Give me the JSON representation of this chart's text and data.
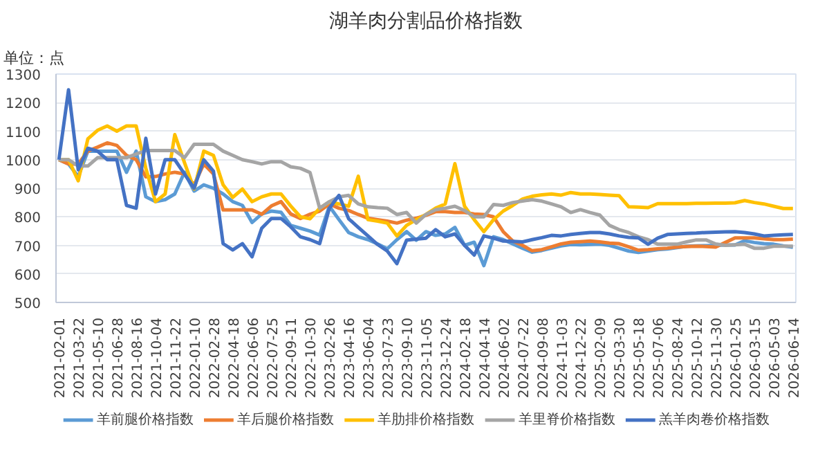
{
  "chart_data": {
    "type": "line",
    "title": "湖羊肉分割品价格指数",
    "annotations": [
      "单位：点"
    ],
    "categories": [
      "2021-02-01",
      null,
      "2021-03-22",
      null,
      "2021-05-10",
      null,
      "2021-06-28",
      null,
      "2021-08-16",
      null,
      "2021-10-04",
      null,
      "2021-11-22",
      null,
      "2022-01-10",
      null,
      "2022-02-28",
      null,
      "2022-04-18",
      null,
      "2022-06-06",
      null,
      "2022-07-25",
      null,
      "2022-09-11",
      null,
      "2022-10-30",
      null,
      "2023-02-26",
      null,
      "2023-04-16",
      null,
      "2023-06-04",
      null,
      "2023-07-23",
      null,
      "2023-09-10",
      null,
      "2023-11-05",
      null,
      "2023-12-24",
      null,
      "2024-02-18",
      null,
      "2024-04-14",
      null,
      "2024-06-02",
      null,
      "2024-07-22",
      null,
      "2024-09-08",
      null,
      "2024-11-03",
      null,
      "2024-12-22",
      null,
      "2025-02-09",
      null,
      "2025-03-30",
      null,
      "2025-05-18",
      null,
      "2025-07-06",
      null,
      "2025-08-24",
      null,
      "2025-10-12",
      null,
      "2025-11-30",
      null,
      "2026-01-25",
      null,
      "2026-03-15",
      null,
      "2026-05-03",
      null,
      "2026-06-14"
    ],
    "series": [
      {
        "name": "羊前腿价格指数",
        "color": "#5b9bd5",
        "values": [
          1000,
          985,
          941,
          1030,
          1030,
          1030,
          1030,
          956,
          1030,
          870,
          853,
          860,
          880,
          956,
          890,
          912,
          900,
          880,
          853,
          840,
          780,
          810,
          820,
          816,
          770,
          760,
          750,
          736,
          837,
          790,
          745,
          730,
          720,
          705,
          688,
          720,
          748,
          718,
          748,
          735,
          740,
          763,
          700,
          711,
          629,
          730,
          720,
          705,
          690,
          676,
          682,
          690,
          698,
          703,
          702,
          703,
          704,
          700,
          690,
          680,
          675,
          680,
          685,
          687,
          692,
          697,
          698,
          699,
          700,
          701,
          701,
          716,
          710,
          706,
          704,
          698,
          693
        ]
      },
      {
        "name": "羊后腿价格指数",
        "color": "#ed7d31",
        "values": [
          1000,
          985,
          985,
          1030,
          1044,
          1059,
          1050,
          1015,
          1000,
          940,
          941,
          950,
          956,
          950,
          912,
          985,
          950,
          824,
          824,
          824,
          824,
          809,
          838,
          853,
          810,
          794,
          809,
          820,
          845,
          830,
          822,
          808,
          795,
          790,
          785,
          778,
          788,
          795,
          805,
          818,
          818,
          815,
          815,
          810,
          808,
          800,
          748,
          715,
          700,
          681,
          685,
          695,
          705,
          711,
          713,
          715,
          712,
          708,
          706,
          695,
          683,
          685,
          688,
          690,
          694,
          696,
          697,
          696,
          694,
          710,
          726,
          726,
          726,
          723,
          720,
          720,
          722
        ]
      },
      {
        "name": "羊肋排价格指数",
        "color": "#ffc000",
        "values": [
          1000,
          1000,
          926,
          1073,
          1103,
          1118,
          1100,
          1118,
          1118,
          970,
          853,
          880,
          1088,
          990,
          897,
          1030,
          1015,
          912,
          868,
          897,
          853,
          870,
          880,
          880,
          838,
          800,
          793,
          830,
          852,
          845,
          837,
          942,
          790,
          785,
          778,
          733,
          770,
          790,
          808,
          830,
          845,
          986,
          837,
          790,
          748,
          790,
          820,
          840,
          862,
          872,
          877,
          880,
          876,
          885,
          880,
          880,
          878,
          876,
          874,
          835,
          834,
          832,
          846,
          846,
          846,
          846,
          847,
          847,
          848,
          848,
          849,
          857,
          850,
          845,
          837,
          829,
          829
        ]
      },
      {
        "name": "羊里脊价格指数",
        "color": "#a5a5a5",
        "values": [
          1000,
          1000,
          978,
          978,
          1007,
          1007,
          1007,
          1007,
          1020,
          1032,
          1032,
          1032,
          1032,
          1007,
          1054,
          1054,
          1054,
          1030,
          1015,
          1000,
          993,
          985,
          993,
          993,
          975,
          970,
          955,
          830,
          853,
          870,
          875,
          845,
          835,
          832,
          830,
          808,
          815,
          778,
          808,
          825,
          830,
          837,
          822,
          800,
          800,
          843,
          840,
          850,
          855,
          860,
          855,
          845,
          835,
          815,
          825,
          815,
          806,
          770,
          755,
          745,
          730,
          720,
          704,
          704,
          704,
          712,
          719,
          719,
          705,
          700,
          702,
          704,
          690,
          690,
          697,
          697,
          697
        ]
      },
      {
        "name": "羔羊肉卷价格指数",
        "color": "#4472c4",
        "values": [
          1000,
          1245,
          965,
          1040,
          1030,
          1000,
          1000,
          840,
          830,
          1075,
          880,
          1000,
          1000,
          950,
          900,
          1000,
          960,
          706,
          684,
          706,
          660,
          760,
          794,
          794,
          765,
          730,
          720,
          706,
          830,
          875,
          793,
          763,
          733,
          703,
          680,
          636,
          718,
          722,
          725,
          755,
          730,
          740,
          700,
          666,
          733,
          725,
          715,
          714,
          712,
          720,
          727,
          735,
          733,
          738,
          742,
          745,
          745,
          740,
          733,
          728,
          726,
          704,
          725,
          738,
          740,
          742,
          743,
          745,
          746,
          747,
          748,
          745,
          740,
          733,
          735,
          737,
          738
        ]
      }
    ],
    "ylim": [
      500,
      1300
    ],
    "yticks": [
      500,
      600,
      700,
      800,
      900,
      1000,
      1100,
      1200,
      1300
    ],
    "grid": "y",
    "legend": "bottom",
    "line_style": "solid"
  }
}
